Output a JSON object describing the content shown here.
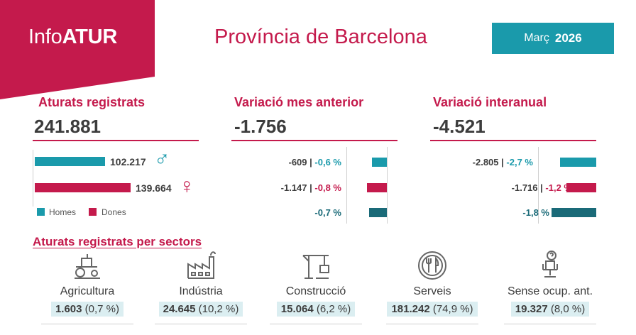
{
  "brand": {
    "prefix": "Info",
    "name": "ATUR"
  },
  "header": {
    "province": "Província de Barcelona",
    "month": "Març",
    "year": "2026"
  },
  "registered": {
    "title": "Aturats registrats",
    "total": "241.881",
    "men": {
      "value": "102.217",
      "symbol": "♂",
      "fraction": 0.423
    },
    "women": {
      "value": "139.664",
      "symbol": "♀",
      "fraction": 0.577
    },
    "legend": {
      "men": "Homes",
      "women": "Dones"
    }
  },
  "monthly": {
    "title": "Variació mes anterior",
    "total": "-1.756",
    "rows": [
      {
        "abs": "-609",
        "sep": "|",
        "pct": "-0,6 %",
        "pct_value": -0.6
      },
      {
        "abs": "-1.147",
        "sep": "|",
        "pct": "-0,8 %",
        "pct_value": -0.8
      },
      {
        "abs": "",
        "sep": "",
        "pct": "-0,7 %",
        "pct_value": -0.7
      }
    ]
  },
  "yearly": {
    "title": "Variació interanual",
    "total": "-4.521",
    "rows": [
      {
        "abs": "-2.805",
        "sep": "|",
        "pct": "-2,7 %",
        "pct_value": -2.7
      },
      {
        "abs": "-1.716",
        "sep": "|",
        "pct": "-1,2 %",
        "pct_value": -1.2
      },
      {
        "abs": "",
        "sep": "",
        "pct": "-1,8 %",
        "pct_value": -1.8
      }
    ]
  },
  "sectors": {
    "title": "Aturats registrats per sectors",
    "items": [
      {
        "name": "Agricultura",
        "value": "1.603",
        "pct": "(0,7 %)",
        "icon": "tractor-icon"
      },
      {
        "name": "Indústria",
        "value": "24.645",
        "pct": "(10,2 %)",
        "icon": "factory-icon"
      },
      {
        "name": "Construcció",
        "value": "15.064",
        "pct": "(6,2 %)",
        "icon": "crane-icon"
      },
      {
        "name": "Serveis",
        "value": "181.242",
        "pct": "(74,9 %)",
        "icon": "cutlery-icon"
      },
      {
        "name": "Sense ocup. ant.",
        "value": "19.327",
        "pct": "(8,0 %)",
        "icon": "office-chair-icon"
      }
    ]
  },
  "colors": {
    "accent": "#c41a4c",
    "teal": "#1a9aab",
    "dark_teal": "#1a6a78"
  }
}
